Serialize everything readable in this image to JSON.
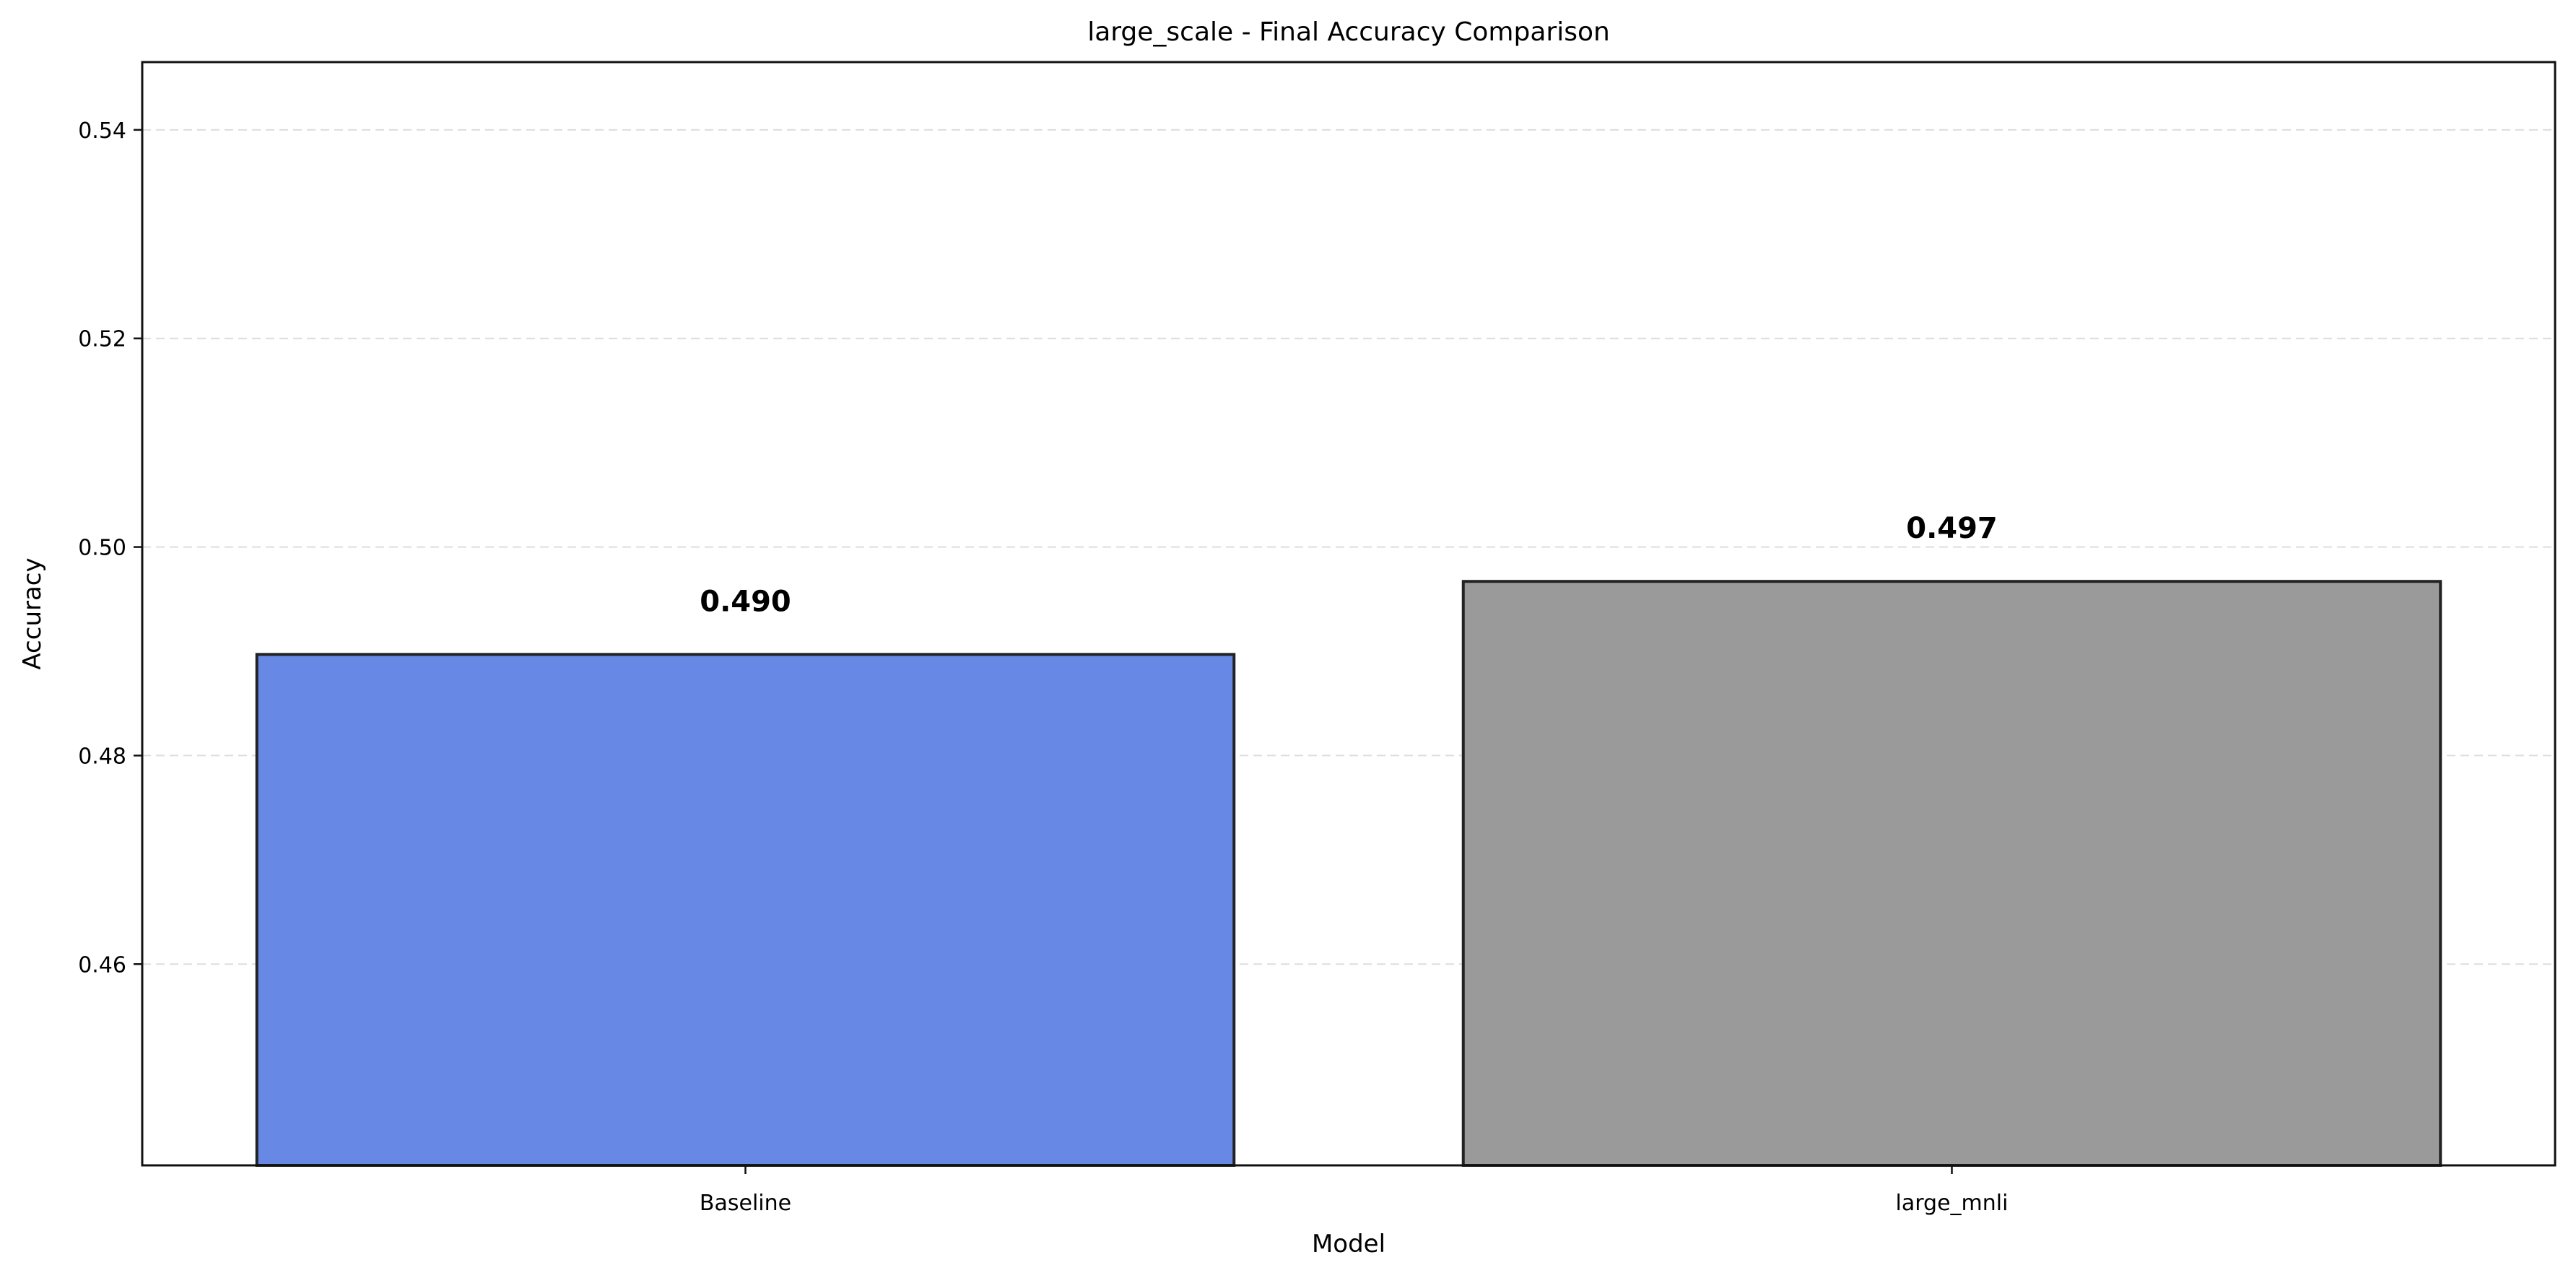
{
  "chart_data": {
    "type": "bar",
    "title": "large_scale - Final Accuracy Comparison",
    "xlabel": "Model",
    "ylabel": "Accuracy",
    "categories": [
      "Baseline",
      "large_mnli"
    ],
    "values": [
      0.4897,
      0.4967
    ],
    "data_labels": [
      "0.490",
      "0.497"
    ],
    "bar_colors": [
      "#6788e5",
      "#9a9a9a"
    ],
    "bar_edge_color": "#222222",
    "ylim": [
      0.4407,
      0.5465
    ],
    "yticks": [
      0.46,
      0.48,
      0.5,
      0.52,
      0.54
    ],
    "ytick_labels": [
      "0.46",
      "0.48",
      "0.50",
      "0.52",
      "0.54"
    ],
    "grid": "y-dashed",
    "legend": "none"
  }
}
